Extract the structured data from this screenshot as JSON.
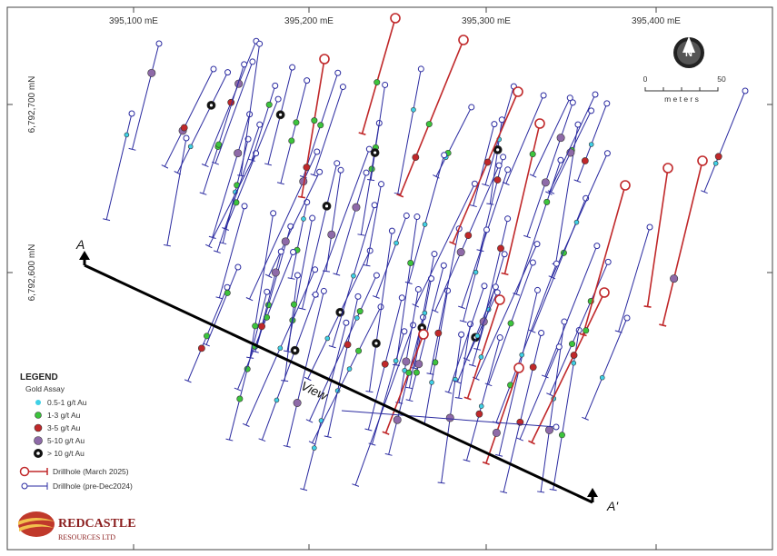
{
  "grid": {
    "x_labels": [
      "395,100 mE",
      "395,200 mE",
      "395,300 mE",
      "395,400 mE"
    ],
    "y_labels": [
      "6,792,700 mN",
      "6,792,600 mN"
    ]
  },
  "north": "N",
  "scale": {
    "min": "0",
    "max": "50",
    "unit": "m e t e r s"
  },
  "section": {
    "start": "A",
    "end": "A'",
    "view": "View"
  },
  "legend": {
    "title": "LEGEND",
    "subtitle": "Gold Assay",
    "assays": [
      "0.5-1 g/t Au",
      "1-3 g/t Au",
      "3-5 g/t Au",
      "5-10 g/t Au",
      "> 10 g/t Au"
    ],
    "drillholes": [
      "Drillhole (March 2025)",
      "Drillhole (pre-Dec2024)"
    ]
  },
  "logo": {
    "name": "REDCASTLE",
    "sub": "RESOURCES LTD"
  }
}
